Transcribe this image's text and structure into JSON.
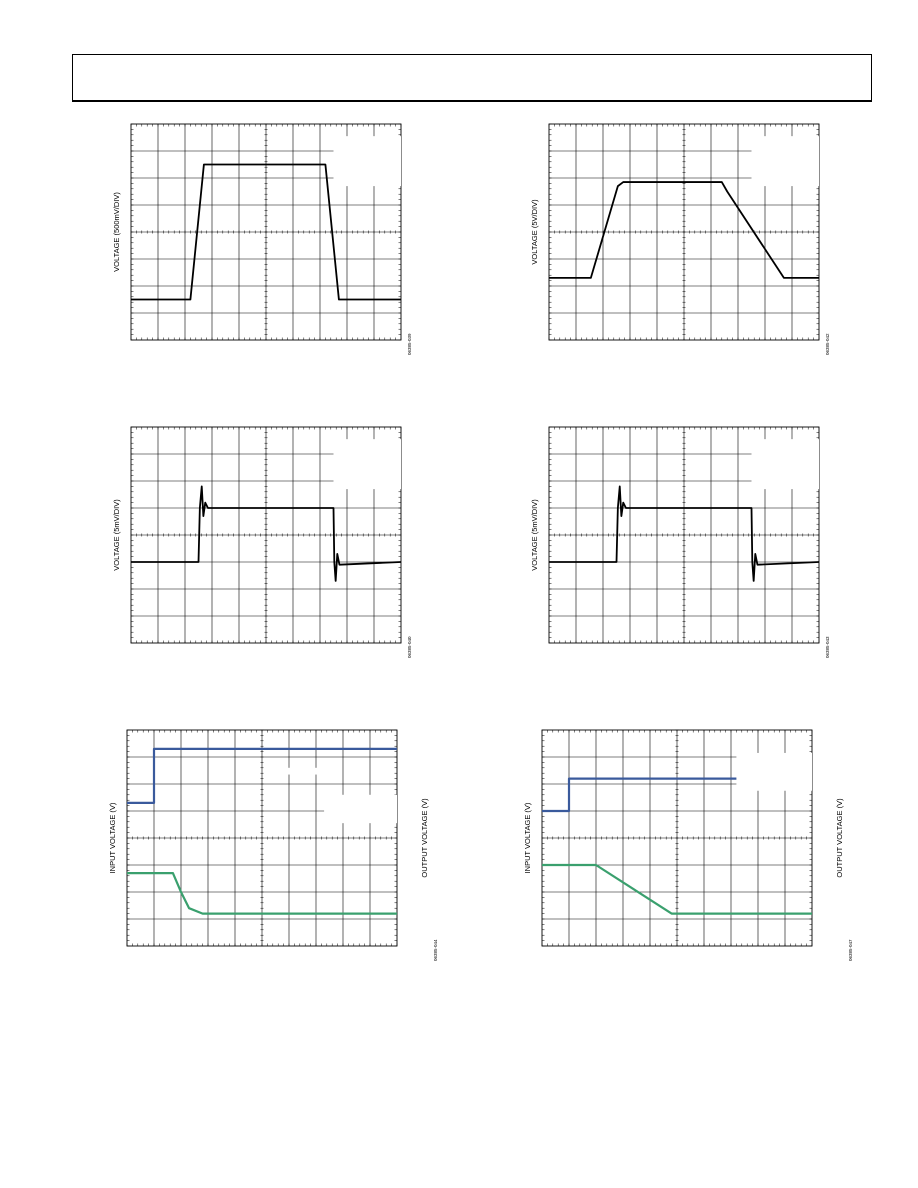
{
  "page": {
    "header_text": ""
  },
  "colors": {
    "trace": "#000000",
    "input_trace": "#3a5a9c",
    "output_trace": "#3aa06e",
    "grid": "#000000"
  },
  "chart_data": [
    {
      "type": "line",
      "ylabel": "VOLTAGE (500mV/DIV)",
      "figure_id": "06385-039",
      "grid": true,
      "divisions": {
        "x": 10,
        "y": 8
      },
      "annotation_box": true,
      "series": [
        {
          "x": [
            0,
            2.2,
            2.7,
            7.2,
            7.7,
            10
          ],
          "values": [
            1.5,
            1.5,
            6.5,
            6.5,
            1.5,
            1.5
          ]
        }
      ]
    },
    {
      "type": "line",
      "ylabel": "VOLTAGE (5V/DIV)",
      "figure_id": "06385-042",
      "grid": true,
      "divisions": {
        "x": 10,
        "y": 8
      },
      "annotation_box": true,
      "series": [
        {
          "x": [
            0,
            1.55,
            2.55,
            2.75,
            6.4,
            6.6,
            8.7,
            10
          ],
          "values": [
            2.3,
            2.3,
            5.7,
            5.85,
            5.85,
            5.5,
            2.3,
            2.3
          ]
        }
      ]
    },
    {
      "type": "line",
      "ylabel": "VOLTAGE (5mV/DIV)",
      "figure_id": "06385-040",
      "grid": true,
      "divisions": {
        "x": 10,
        "y": 8
      },
      "annotation_box": true,
      "series": [
        {
          "x": [
            0,
            2.5,
            2.55,
            2.62,
            2.68,
            2.75,
            2.85,
            7.5,
            7.53,
            7.58,
            7.64,
            7.72,
            10
          ],
          "values": [
            3.0,
            3.0,
            5.0,
            5.8,
            4.7,
            5.2,
            5.0,
            5.0,
            3.0,
            2.3,
            3.3,
            2.9,
            3.0
          ]
        }
      ]
    },
    {
      "type": "line",
      "ylabel": "VOLTAGE (5mV/DIV)",
      "figure_id": "06385-043",
      "grid": true,
      "divisions": {
        "x": 10,
        "y": 8
      },
      "annotation_box": true,
      "series": [
        {
          "x": [
            0,
            2.5,
            2.55,
            2.62,
            2.68,
            2.75,
            2.85,
            7.5,
            7.53,
            7.58,
            7.64,
            7.72,
            10
          ],
          "values": [
            3.0,
            3.0,
            5.0,
            5.8,
            4.7,
            5.2,
            5.0,
            5.0,
            3.0,
            2.3,
            3.3,
            2.9,
            3.0
          ]
        }
      ]
    },
    {
      "type": "line",
      "ylabel": "INPUT VOLTAGE (V)",
      "ylabel_right": "OUTPUT VOLTAGE (V)",
      "figure_id": "06385-044",
      "grid": true,
      "divisions": {
        "x": 10,
        "y": 8
      },
      "annotation_box": true,
      "series": [
        {
          "x": [
            0,
            1.0,
            1.0,
            10
          ],
          "values": [
            5.3,
            5.3,
            7.3,
            7.3
          ]
        },
        {
          "x": [
            0,
            1.7,
            2.0,
            2.3,
            2.8,
            10
          ],
          "values": [
            2.7,
            2.7,
            2.0,
            1.4,
            1.2,
            1.2
          ]
        }
      ]
    },
    {
      "type": "line",
      "ylabel": "INPUT VOLTAGE (V)",
      "ylabel_right": "OUTPUT VOLTAGE (V)",
      "figure_id": "06385-047",
      "grid": true,
      "divisions": {
        "x": 10,
        "y": 8
      },
      "annotation_box": true,
      "series": [
        {
          "x": [
            0,
            1.0,
            1.0,
            10
          ],
          "values": [
            5.0,
            5.0,
            6.2,
            6.2
          ]
        },
        {
          "x": [
            0,
            2.0,
            4.8,
            10
          ],
          "values": [
            3.0,
            3.0,
            1.2,
            1.2
          ]
        }
      ]
    }
  ]
}
